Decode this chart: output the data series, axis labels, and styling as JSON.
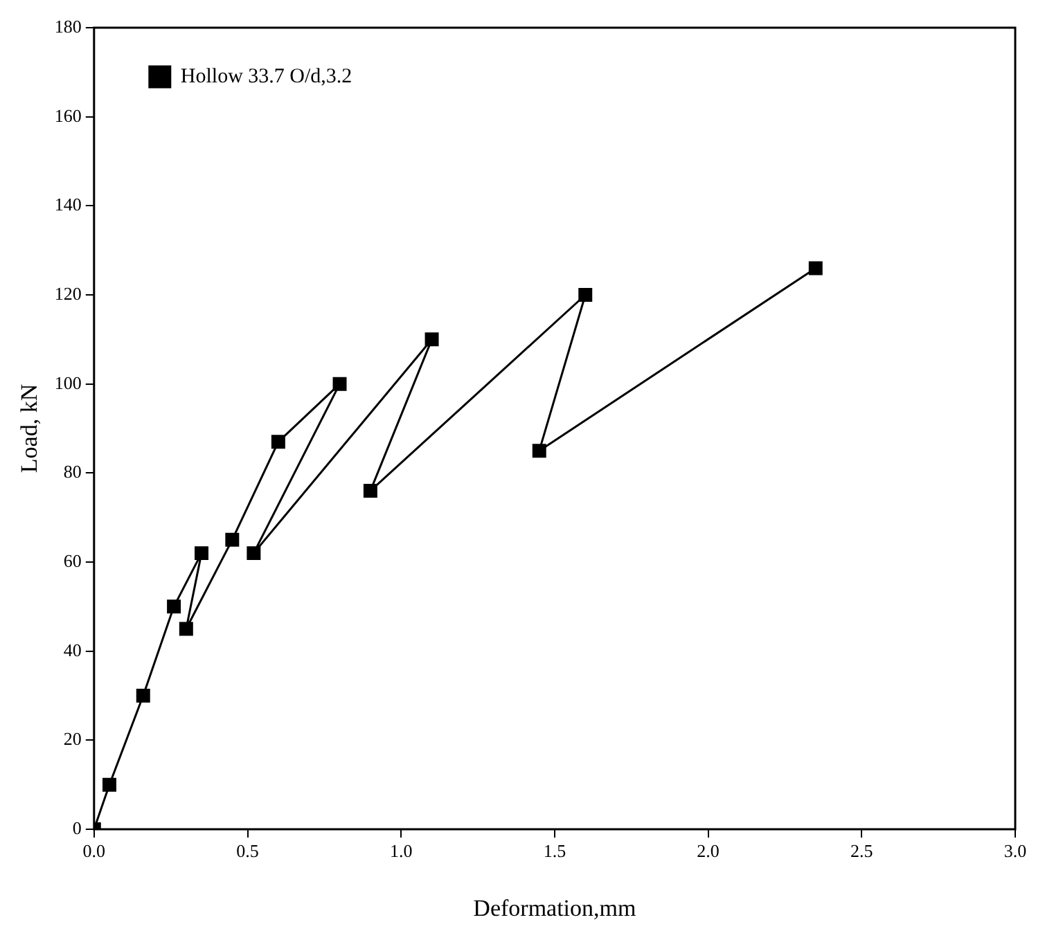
{
  "chart_data": {
    "type": "line",
    "xlabel": "Deformation,mm",
    "ylabel": "Load, kN",
    "series": [
      {
        "name": "Hollow 33.7 O/d,3.2",
        "color": "#000000",
        "x": [
          0,
          0.05,
          0.16,
          0.26,
          0.35,
          0.3,
          0.45,
          0.6,
          0.8,
          0.52,
          1.1,
          0.9,
          1.6,
          1.45,
          2.35
        ],
        "values": [
          0,
          10,
          30,
          50,
          62,
          45,
          65,
          87,
          100,
          62,
          110,
          76,
          120,
          85,
          126
        ]
      }
    ],
    "xlim": [
      0,
      3
    ],
    "xticks": [
      {
        "value": 0,
        "label": "0.0"
      },
      {
        "value": 0.5,
        "label": "0.5"
      },
      {
        "value": 1,
        "label": "1.0"
      },
      {
        "value": 1.5,
        "label": "1.5"
      },
      {
        "value": 2,
        "label": "2.0"
      },
      {
        "value": 2.5,
        "label": "2.5"
      },
      {
        "value": 3,
        "label": "3.0"
      }
    ],
    "ylim": [
      0,
      180
    ],
    "yticks": [
      0,
      20,
      40,
      60,
      80,
      100,
      120,
      140,
      160,
      180
    ],
    "grid": false,
    "legend": "top left",
    "marker": "square",
    "line_style": "solid"
  }
}
